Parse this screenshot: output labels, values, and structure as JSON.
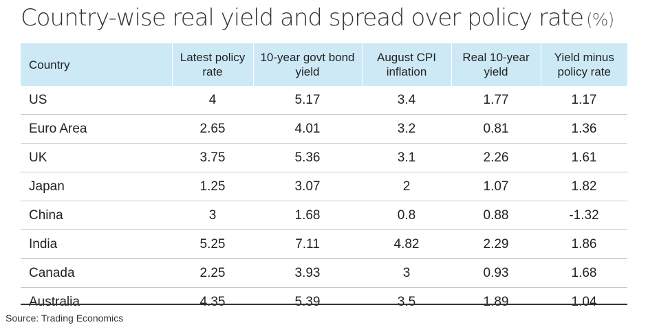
{
  "title": "Country-wise real yield and spread over policy rate",
  "title_unit": "(%)",
  "source": "Source: Trading Economics",
  "chart_data": {
    "type": "table",
    "title": "Country-wise real yield and spread over policy rate (%)",
    "columns": [
      "Country",
      "Latest policy rate",
      "10-year govt bond yield",
      "August CPI inflation",
      "Real 10-year yield",
      "Yield minus policy rate"
    ],
    "rows": [
      [
        "US",
        "4",
        "5.17",
        "3.4",
        "1.77",
        "1.17"
      ],
      [
        "Euro Area",
        "2.65",
        "4.01",
        "3.2",
        "0.81",
        "1.36"
      ],
      [
        "UK",
        "3.75",
        "5.36",
        "3.1",
        "2.26",
        "1.61"
      ],
      [
        "Japan",
        "1.25",
        "3.07",
        "2",
        "1.07",
        "1.82"
      ],
      [
        "China",
        "3",
        "1.68",
        "0.8",
        "0.88",
        "-1.32"
      ],
      [
        "India",
        "5.25",
        "7.11",
        "4.82",
        "2.29",
        "1.86"
      ],
      [
        "Canada",
        "2.25",
        "3.93",
        "3",
        "0.93",
        "1.68"
      ],
      [
        "Australia",
        "4.35",
        "5.39",
        "3.5",
        "1.89",
        "1.04"
      ]
    ],
    "header_color": "#cde9f6"
  }
}
